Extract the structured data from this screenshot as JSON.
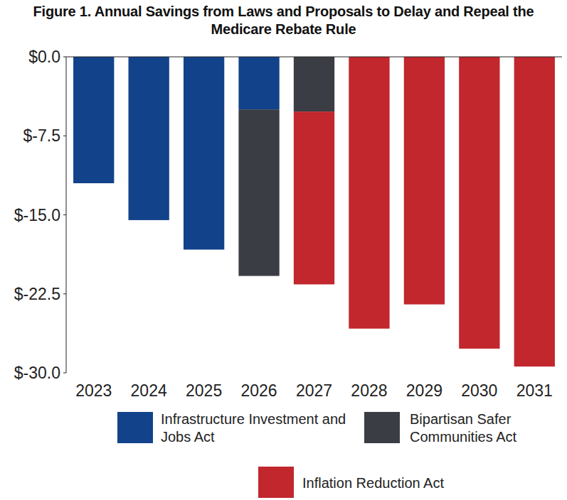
{
  "chart_data": {
    "type": "bar",
    "title": "Figure 1. Annual Savings from Laws and Proposals to Delay and Repeal the Medicare Rebate Rule",
    "categories": [
      "2023",
      "2024",
      "2025",
      "2026",
      "2027",
      "2028",
      "2029",
      "2030",
      "2031"
    ],
    "series": [
      {
        "name": "Infrastructure Investment and Jobs Act",
        "color": "#12428a",
        "values": [
          -12.0,
          -15.5,
          -18.3,
          -5.0,
          null,
          null,
          null,
          null,
          null
        ]
      },
      {
        "name": "Bipartisan Safer Communities Act",
        "color": "#3a3d44",
        "values": [
          null,
          null,
          null,
          -15.8,
          -5.2,
          null,
          null,
          null,
          null
        ]
      },
      {
        "name": "Inflation Reduction Act",
        "color": "#c1272d",
        "values": [
          null,
          null,
          null,
          null,
          -16.4,
          -25.8,
          -23.5,
          -27.7,
          -29.4
        ]
      }
    ],
    "ylim": [
      -30,
      0
    ],
    "yticks": [
      {
        "value": 0,
        "label": "$0.0"
      },
      {
        "value": -7.5,
        "label": "$-7.5"
      },
      {
        "value": -15,
        "label": "$-15.0"
      },
      {
        "value": -22.5,
        "label": "$-22.5"
      },
      {
        "value": -30,
        "label": "$-30.0"
      }
    ],
    "stacked": true,
    "grid": false,
    "legend": "bottom"
  }
}
